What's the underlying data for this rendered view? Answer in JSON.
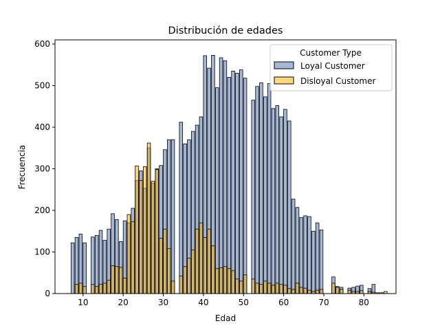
{
  "chart_data": {
    "type": "bar",
    "title": "Distribución de edades",
    "xlabel": "Edad",
    "ylabel": "Frecuencia",
    "xlim": [
      3,
      88
    ],
    "ylim": [
      0,
      610
    ],
    "xticks": [
      10,
      20,
      30,
      40,
      50,
      60,
      70,
      80
    ],
    "yticks": [
      0,
      100,
      200,
      300,
      400,
      500,
      600
    ],
    "bin_width": 0.8,
    "legend": {
      "title": "Customer Type",
      "location": "upper-right",
      "entries": [
        "Loyal Customer",
        "Disloyal Customer"
      ]
    },
    "series": [
      {
        "name": "Loyal Customer",
        "color": "#4c72b0",
        "bins": [
          [
            7,
            122
          ],
          [
            8,
            135
          ],
          [
            9,
            143
          ],
          [
            10,
            122
          ],
          [
            12,
            136
          ],
          [
            13,
            140
          ],
          [
            14,
            152
          ],
          [
            15,
            128
          ],
          [
            16,
            155
          ],
          [
            17,
            192
          ],
          [
            18,
            178
          ],
          [
            19,
            125
          ],
          [
            20,
            175
          ],
          [
            21,
            170
          ],
          [
            22,
            205
          ],
          [
            23,
            272
          ],
          [
            24,
            295
          ],
          [
            25,
            253
          ],
          [
            26,
            350
          ],
          [
            27,
            265
          ],
          [
            28,
            300
          ],
          [
            29,
            308
          ],
          [
            30,
            346
          ],
          [
            31,
            370
          ],
          [
            32,
            370
          ],
          [
            34,
            412
          ],
          [
            35,
            360
          ],
          [
            36,
            370
          ],
          [
            37,
            390
          ],
          [
            38,
            405
          ],
          [
            39,
            425
          ],
          [
            40,
            572
          ],
          [
            41,
            542
          ],
          [
            42,
            573
          ],
          [
            43,
            495
          ],
          [
            44,
            567
          ],
          [
            45,
            560
          ],
          [
            46,
            520
          ],
          [
            47,
            535
          ],
          [
            48,
            530
          ],
          [
            49,
            538
          ],
          [
            50,
            518
          ],
          [
            52,
            465
          ],
          [
            53,
            498
          ],
          [
            54,
            507
          ],
          [
            55,
            473
          ],
          [
            56,
            505
          ],
          [
            57,
            445
          ],
          [
            58,
            452
          ],
          [
            59,
            425
          ],
          [
            60,
            443
          ],
          [
            61,
            415
          ],
          [
            62,
            227
          ],
          [
            63,
            207
          ],
          [
            64,
            183
          ],
          [
            65,
            187
          ],
          [
            66,
            185
          ],
          [
            67,
            150
          ],
          [
            68,
            170
          ],
          [
            69,
            153
          ],
          [
            72,
            40
          ],
          [
            73,
            17
          ],
          [
            74,
            15
          ],
          [
            76,
            13
          ],
          [
            77,
            15
          ],
          [
            78,
            18
          ],
          [
            79,
            20
          ],
          [
            81,
            12
          ],
          [
            82,
            22
          ]
        ]
      },
      {
        "name": "Disloyal Customer",
        "color": "#ffb000",
        "bins": [
          [
            7,
            0
          ],
          [
            8,
            22
          ],
          [
            9,
            25
          ],
          [
            10,
            17
          ],
          [
            12,
            22
          ],
          [
            13,
            17
          ],
          [
            14,
            22
          ],
          [
            15,
            25
          ],
          [
            16,
            32
          ],
          [
            17,
            67
          ],
          [
            18,
            65
          ],
          [
            19,
            63
          ],
          [
            20,
            37
          ],
          [
            21,
            190
          ],
          [
            22,
            173
          ],
          [
            23,
            307
          ],
          [
            24,
            272
          ],
          [
            25,
            305
          ],
          [
            26,
            362
          ],
          [
            27,
            270
          ],
          [
            28,
            298
          ],
          [
            29,
            133
          ],
          [
            30,
            155
          ],
          [
            31,
            108
          ],
          [
            32,
            30
          ],
          [
            34,
            42
          ],
          [
            35,
            65
          ],
          [
            36,
            85
          ],
          [
            37,
            105
          ],
          [
            38,
            155
          ],
          [
            39,
            170
          ],
          [
            40,
            135
          ],
          [
            41,
            155
          ],
          [
            42,
            115
          ],
          [
            43,
            60
          ],
          [
            44,
            62
          ],
          [
            45,
            65
          ],
          [
            46,
            60
          ],
          [
            47,
            55
          ],
          [
            48,
            35
          ],
          [
            49,
            30
          ],
          [
            50,
            45
          ],
          [
            52,
            35
          ],
          [
            53,
            25
          ],
          [
            54,
            22
          ],
          [
            55,
            30
          ],
          [
            56,
            25
          ],
          [
            57,
            20
          ],
          [
            58,
            25
          ],
          [
            59,
            22
          ],
          [
            60,
            20
          ],
          [
            61,
            12
          ],
          [
            62,
            10
          ],
          [
            63,
            25
          ],
          [
            64,
            15
          ],
          [
            65,
            13
          ],
          [
            66,
            8
          ],
          [
            67,
            5
          ],
          [
            68,
            8
          ],
          [
            69,
            10
          ],
          [
            72,
            25
          ],
          [
            73,
            15
          ],
          [
            74,
            10
          ],
          [
            76,
            8
          ],
          [
            77,
            5
          ],
          [
            78,
            5
          ],
          [
            79,
            7
          ],
          [
            81,
            5
          ],
          [
            82,
            3
          ],
          [
            83,
            2
          ],
          [
            84,
            2
          ],
          [
            85,
            5
          ]
        ]
      }
    ]
  }
}
